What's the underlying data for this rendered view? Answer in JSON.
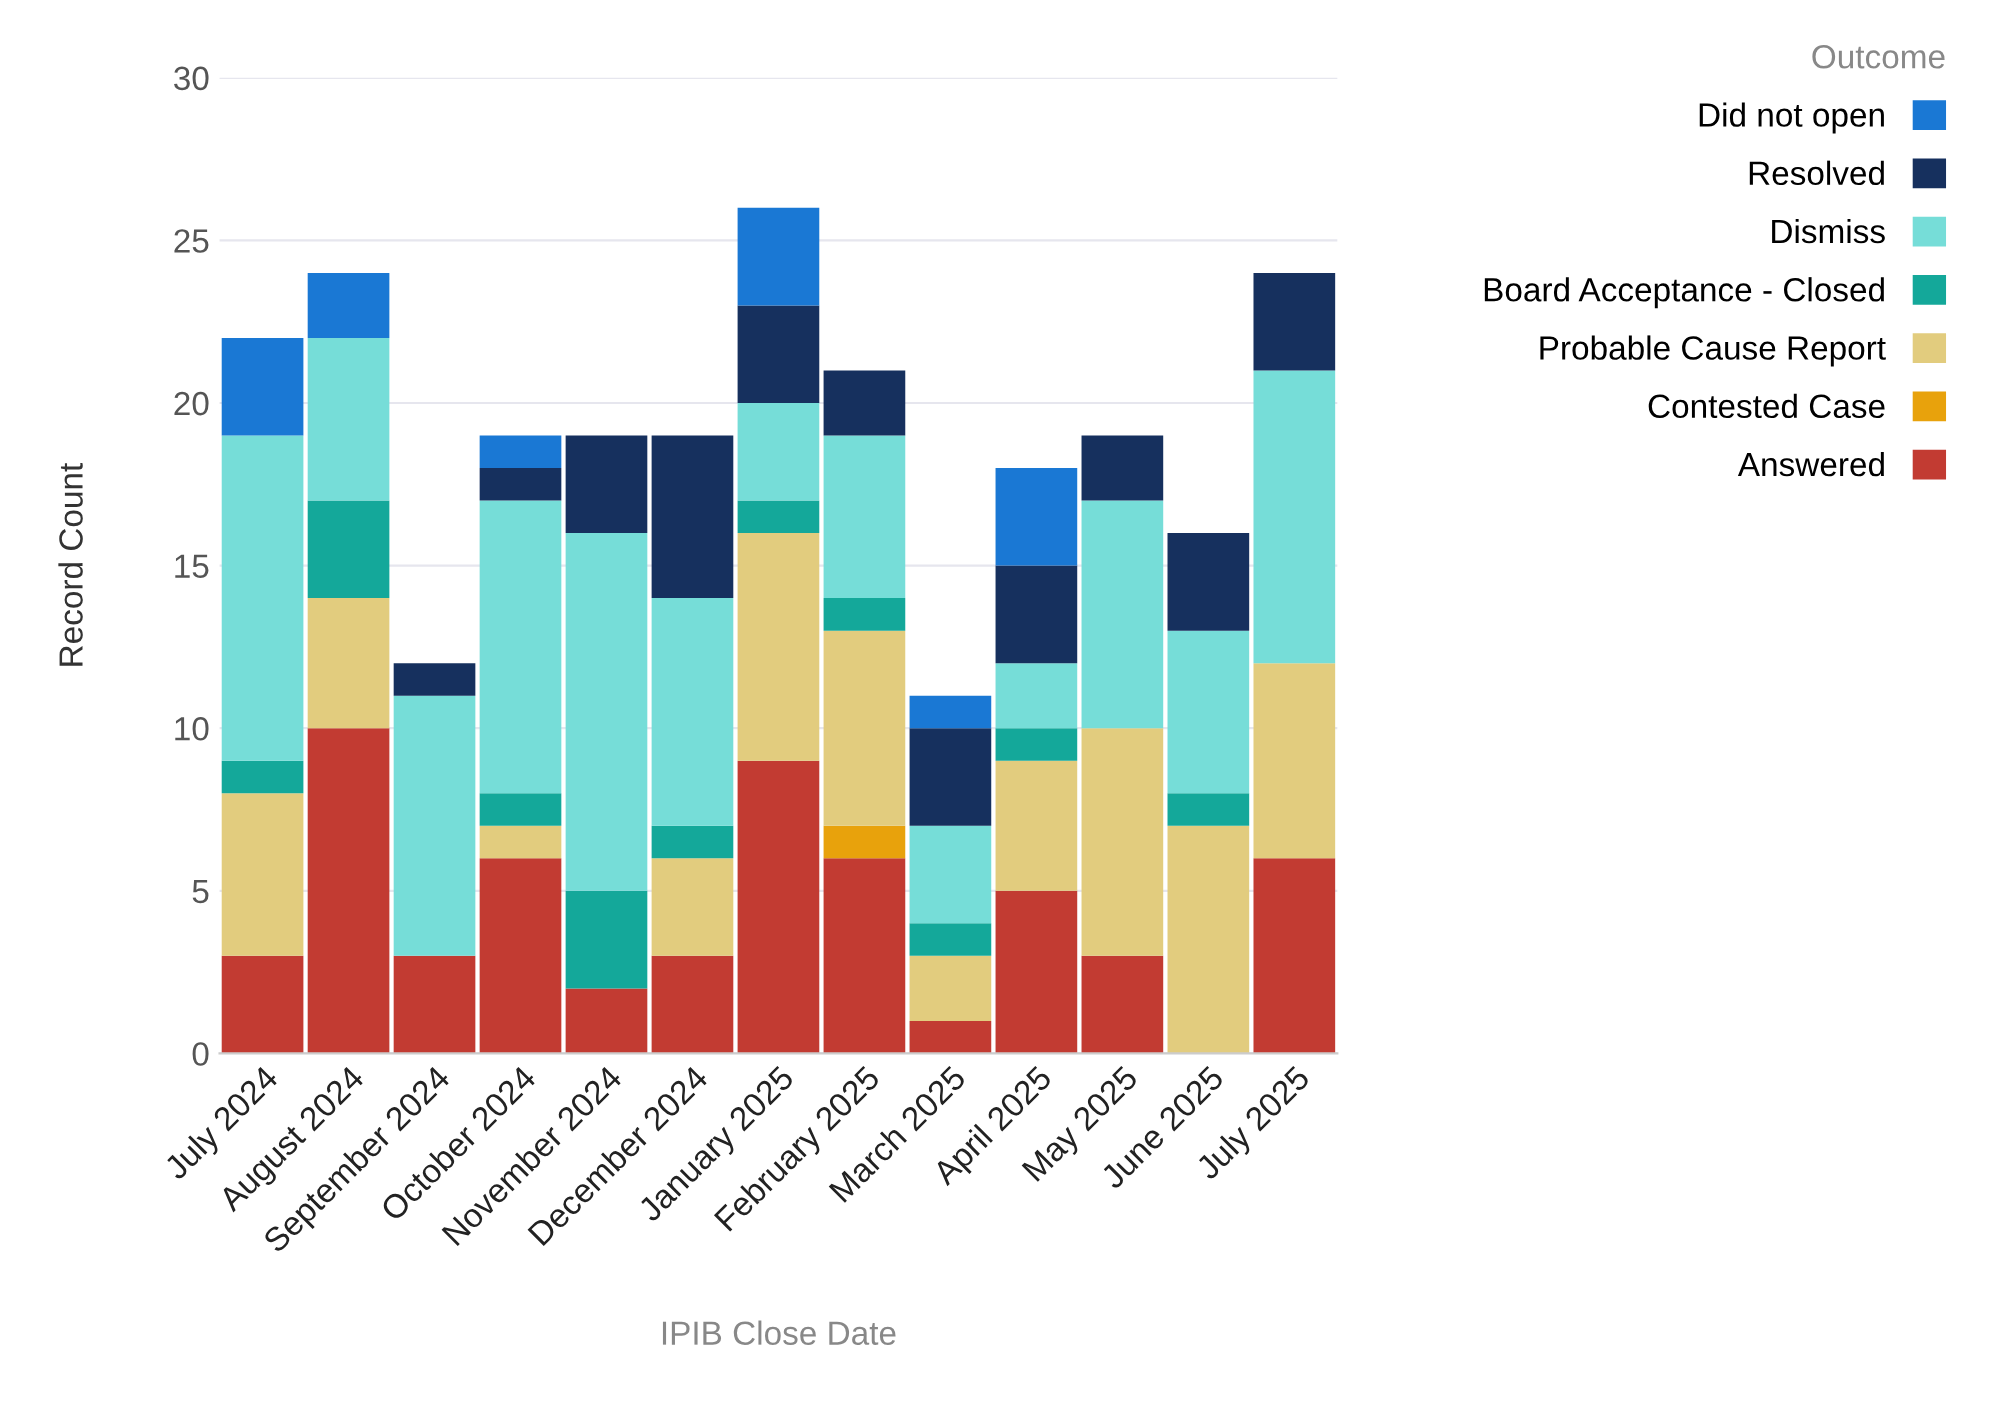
{
  "chart_data": {
    "type": "bar",
    "stacked": true,
    "xlabel": "IPIB Close Date",
    "ylabel": "Record Count",
    "legend_title": "Outcome",
    "legend": "top right",
    "grid": "y",
    "categories": [
      "July 2024",
      "August 2024",
      "September 2024",
      "October 2024",
      "November 2024",
      "December 2024",
      "January 2025",
      "February 2025",
      "March 2025",
      "April 2025",
      "May 2025",
      "June 2025",
      "July 2025"
    ],
    "ylim": [
      0,
      30
    ],
    "yticks": [
      0,
      5,
      10,
      15,
      20,
      25,
      30
    ],
    "series": [
      {
        "name": "Answered",
        "color": "#c23b32",
        "values": [
          3,
          10,
          3,
          6,
          2,
          3,
          9,
          6,
          1,
          5,
          3,
          0,
          6
        ]
      },
      {
        "name": "Contested Case",
        "color": "#e8a20c",
        "values": [
          0,
          0,
          0,
          0,
          0,
          0,
          0,
          1,
          0,
          0,
          0,
          0,
          0
        ]
      },
      {
        "name": "Probable Cause Report",
        "color": "#e2cc7e",
        "values": [
          5,
          4,
          0,
          1,
          0,
          3,
          7,
          6,
          2,
          4,
          7,
          7,
          6
        ]
      },
      {
        "name": "Board Acceptance - Closed",
        "color": "#14a89a",
        "values": [
          1,
          3,
          0,
          1,
          3,
          1,
          1,
          1,
          1,
          1,
          0,
          1,
          0
        ]
      },
      {
        "name": "Dismiss",
        "color": "#76ddd8",
        "values": [
          10,
          5,
          8,
          9,
          11,
          7,
          3,
          5,
          3,
          2,
          7,
          5,
          9
        ]
      },
      {
        "name": "Resolved",
        "color": "#16305e",
        "values": [
          0,
          0,
          1,
          1,
          3,
          5,
          3,
          2,
          3,
          3,
          2,
          3,
          3
        ]
      },
      {
        "name": "Did not open",
        "color": "#1a78d4",
        "values": [
          3,
          2,
          0,
          1,
          0,
          0,
          3,
          0,
          1,
          3,
          0,
          0,
          0
        ]
      }
    ]
  }
}
